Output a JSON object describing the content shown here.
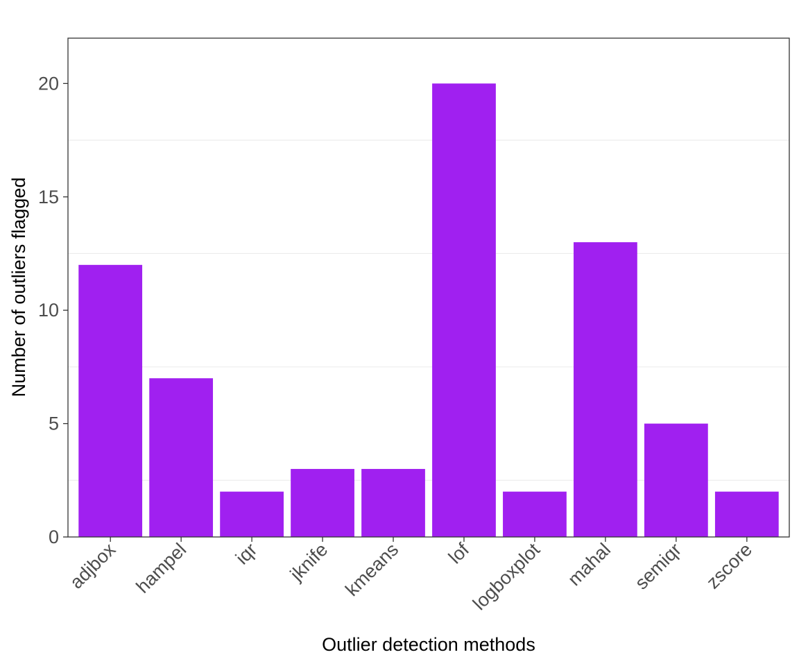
{
  "chart_data": {
    "type": "bar",
    "title": "",
    "xlabel": "Outlier detection methods",
    "ylabel": "Number of outliers flagged",
    "categories": [
      "adjbox",
      "hampel",
      "iqr",
      "jknife",
      "kmeans",
      "lof",
      "logboxplot",
      "mahal",
      "semiqr",
      "zscore"
    ],
    "values": [
      12,
      7,
      2,
      3,
      3,
      20,
      2,
      13,
      5,
      2
    ],
    "ylim": [
      0,
      22
    ],
    "yticks": [
      0,
      5,
      10,
      15,
      20
    ],
    "y_minor_gridlines": [
      2.5,
      7.5,
      12.5,
      17.5
    ],
    "grid": "horizontal minor",
    "legend": "none",
    "bar_color": "#A020F0",
    "x_tick_rotation": "45 degrees"
  }
}
